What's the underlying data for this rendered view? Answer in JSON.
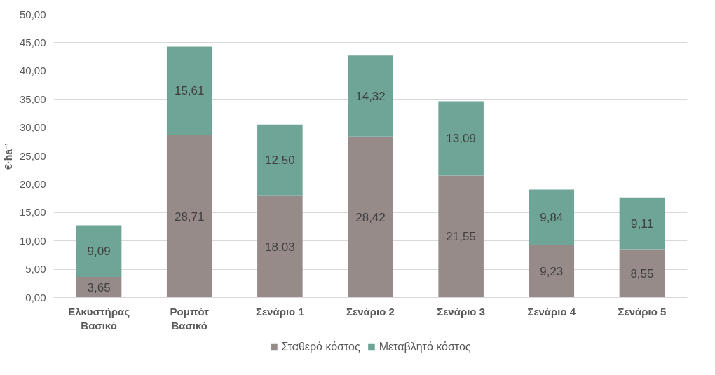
{
  "chart_data": {
    "type": "bar",
    "stacked": true,
    "ylabel": "€·ha⁻¹",
    "categories": [
      "Ελκυστήρας\nΒασικό",
      "Ρομπότ\nΒασικό",
      "Σενάριο 1",
      "Σενάριο 2",
      "Σενάριο 3",
      "Σενάριο 4",
      "Σενάριο 5"
    ],
    "series": [
      {
        "name": "Σταθερό κόστος",
        "color": "#978b8a",
        "values": [
          3.65,
          28.71,
          18.03,
          28.42,
          21.55,
          9.23,
          8.55
        ],
        "value_labels": [
          "3,65",
          "28,71",
          "18,03",
          "28,42",
          "21,55",
          "9,23",
          "8,55"
        ]
      },
      {
        "name": "Μεταβλητό κόστος",
        "color": "#6fa597",
        "values": [
          9.09,
          15.61,
          12.5,
          14.32,
          13.09,
          9.84,
          9.11
        ],
        "value_labels": [
          "9,09",
          "15,61",
          "12,50",
          "14,32",
          "13,09",
          "9,84",
          "9,11"
        ]
      }
    ],
    "ylim": [
      0,
      50
    ],
    "yticks": [
      {
        "value": 0,
        "label": "0,00"
      },
      {
        "value": 5,
        "label": "5,00"
      },
      {
        "value": 10,
        "label": "10,00"
      },
      {
        "value": 15,
        "label": "15,00"
      },
      {
        "value": 20,
        "label": "20,00"
      },
      {
        "value": 25,
        "label": "25,00"
      },
      {
        "value": 30,
        "label": "30,00"
      },
      {
        "value": 35,
        "label": "35,00"
      },
      {
        "value": 40,
        "label": "40,00"
      },
      {
        "value": 45,
        "label": "45,00"
      },
      {
        "value": 50,
        "label": "50,00"
      }
    ],
    "grid": "y",
    "legend": "bottom"
  }
}
